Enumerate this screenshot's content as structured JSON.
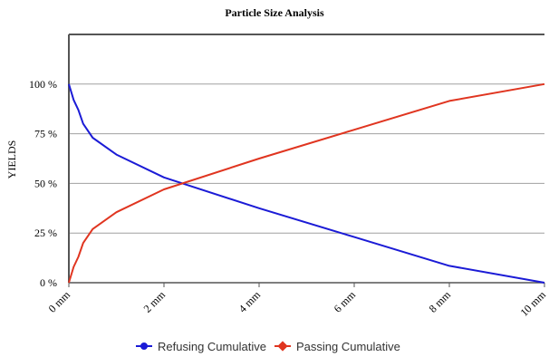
{
  "chart_data": {
    "type": "line",
    "title": "Particle Size Analysis",
    "xlabel": "",
    "ylabel": "YIELDS",
    "x_tick_labels": [
      "0 mm",
      "2 mm",
      "4 mm",
      "6 mm",
      "8 mm",
      "10 mm"
    ],
    "x_ticks": [
      0,
      2,
      4,
      6,
      8,
      10
    ],
    "y_tick_labels": [
      "0 %",
      "25 %",
      "50 %",
      "75 %",
      "100 %"
    ],
    "y_ticks": [
      0,
      25,
      50,
      75,
      100
    ],
    "xlim": [
      0,
      10
    ],
    "ylim": [
      0,
      125
    ],
    "grid": "horizontal",
    "legend": "bottom-center",
    "series": [
      {
        "name": "Refusing Cumulative",
        "color": "#1b1bd6",
        "x": [
          0.0,
          0.1,
          0.2,
          0.3,
          0.5,
          1.0,
          2.0,
          4.0,
          6.0,
          8.0,
          10.0
        ],
        "y": [
          100,
          92,
          87,
          80,
          73,
          64.5,
          53,
          37.5,
          23,
          8.5,
          0
        ]
      },
      {
        "name": "Passing Cumulative",
        "color": "#e03520",
        "x": [
          0.0,
          0.1,
          0.2,
          0.3,
          0.5,
          1.0,
          2.0,
          4.0,
          6.0,
          8.0,
          10.0
        ],
        "y": [
          0,
          8,
          13,
          20,
          27,
          35.5,
          47,
          62.5,
          77,
          91.5,
          100
        ]
      }
    ]
  }
}
